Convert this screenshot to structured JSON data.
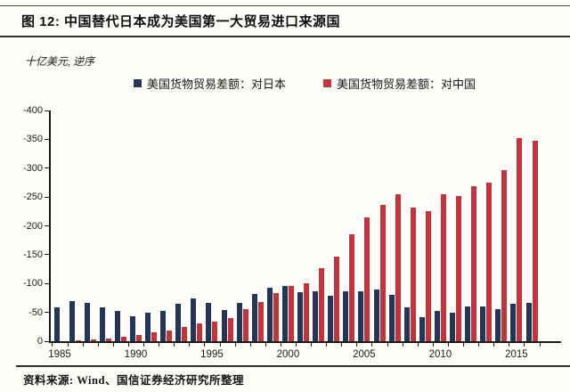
{
  "header": {
    "title": "图 12: 中国替代日本成为美国第一大贸易进口来源国"
  },
  "footer": {
    "source": "资料来源: Wind、国信证券经济研究所整理"
  },
  "colors": {
    "japan": "#23365a",
    "china": "#c3333a",
    "axis": "#1c1c1c",
    "background": "#fffefb"
  },
  "chart_data": {
    "type": "bar",
    "title": "中国替代日本成为美国第一大贸易进口来源国",
    "unit_label": "十亿美元, 逆序",
    "ylabel": "十亿美元 (逆序)",
    "xlabel": "",
    "grid": false,
    "legend_position": "top",
    "y_reversed": true,
    "ylim": [
      0,
      -400
    ],
    "yticks": [
      -400,
      -350,
      -300,
      -250,
      -200,
      -150,
      -100,
      -50,
      0
    ],
    "xticks": [
      1985,
      1990,
      1995,
      2000,
      2005,
      2010,
      2015
    ],
    "x": [
      1985,
      1986,
      1987,
      1988,
      1989,
      1990,
      1991,
      1992,
      1993,
      1994,
      1995,
      1996,
      1997,
      1998,
      1999,
      2000,
      2001,
      2002,
      2003,
      2004,
      2005,
      2006,
      2007,
      2008,
      2009,
      2010,
      2011,
      2012,
      2013,
      2014,
      2015,
      2016
    ],
    "series": [
      {
        "name": "美国货物贸易差额：对日本",
        "color_key": "japan",
        "values": [
          -58,
          -70,
          -67,
          -59,
          -53,
          -43,
          -49,
          -53,
          -65,
          -74,
          -66,
          -54,
          -66,
          -82,
          -92,
          -95,
          -85,
          -87,
          -78,
          -86,
          -86,
          -89,
          -80,
          -59,
          -42,
          -53,
          -50,
          -61,
          -60,
          -55,
          -65,
          -67
        ]
      },
      {
        "name": "美国货物贸易差额：对中国",
        "color_key": "china",
        "values": [
          0,
          -2,
          -3,
          -5,
          -8,
          -11,
          -15,
          -19,
          -24,
          -31,
          -34,
          -40,
          -56,
          -68,
          -83,
          -96,
          -100,
          -126,
          -146,
          -185,
          -215,
          -236,
          -255,
          -231,
          -226,
          -255,
          -251,
          -268,
          -275,
          -297,
          -352,
          -347
        ]
      }
    ]
  }
}
